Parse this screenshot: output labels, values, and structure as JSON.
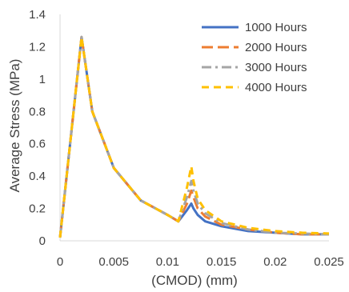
{
  "chart_data": {
    "type": "line",
    "title": "",
    "xlabel": "(CMOD) (mm)",
    "ylabel": "Average Stress (MPa)",
    "xlim": [
      0,
      0.025
    ],
    "ylim": [
      0,
      1.4
    ],
    "x_ticks": [
      0,
      0.005,
      0.01,
      0.015,
      0.02,
      0.025
    ],
    "x_tick_labels": [
      "0",
      "0.005",
      "0.01",
      "0.015",
      "0.02",
      "0.025"
    ],
    "y_ticks": [
      0,
      0.2,
      0.4,
      0.6,
      0.8,
      1.0,
      1.2,
      1.4
    ],
    "y_tick_labels": [
      "0",
      "0.2",
      "0.4",
      "0.6",
      "0.8",
      "1",
      "1.2",
      "1.4"
    ],
    "grid": false,
    "legend_position": "top-right",
    "x": [
      0,
      0.002,
      0.003,
      0.005,
      0.0075,
      0.01,
      0.011,
      0.0118,
      0.0122,
      0.0124,
      0.0128,
      0.0135,
      0.015,
      0.0175,
      0.02,
      0.0225,
      0.025
    ],
    "series": [
      {
        "name": "1000 Hours",
        "color": "#4472C4",
        "dash": "solid",
        "values": [
          0.02,
          1.26,
          0.8,
          0.45,
          0.25,
          0.16,
          0.12,
          0.19,
          0.23,
          0.2,
          0.16,
          0.12,
          0.09,
          0.06,
          0.05,
          0.04,
          0.04
        ]
      },
      {
        "name": "2000 Hours",
        "color": "#ED7D31",
        "dash": "long-dash",
        "values": [
          0.02,
          1.26,
          0.8,
          0.45,
          0.25,
          0.16,
          0.12,
          0.23,
          0.31,
          0.27,
          0.2,
          0.15,
          0.1,
          0.07,
          0.05,
          0.04,
          0.04
        ]
      },
      {
        "name": "3000 Hours",
        "color": "#A5A5A5",
        "dash": "dash-dot",
        "values": [
          0.02,
          1.26,
          0.8,
          0.45,
          0.25,
          0.16,
          0.12,
          0.27,
          0.37,
          0.31,
          0.23,
          0.17,
          0.11,
          0.07,
          0.05,
          0.045,
          0.04
        ]
      },
      {
        "name": "4000 Hours",
        "color": "#FFC000",
        "dash": "dash",
        "values": [
          0.02,
          1.26,
          0.8,
          0.45,
          0.25,
          0.16,
          0.12,
          0.33,
          0.46,
          0.37,
          0.26,
          0.19,
          0.12,
          0.08,
          0.06,
          0.05,
          0.045
        ]
      }
    ]
  }
}
